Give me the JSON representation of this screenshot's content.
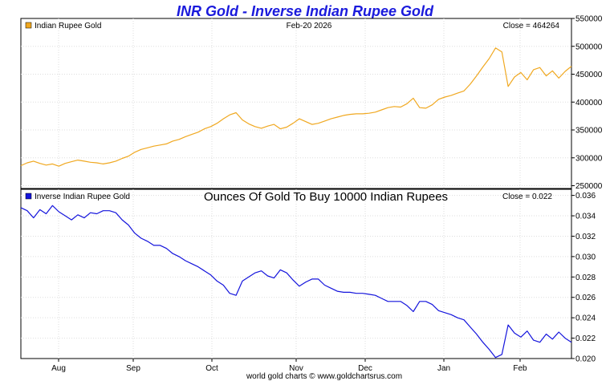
{
  "chart_data": {
    "title": "INR Gold - Inverse Indian Rupee Gold",
    "title_color": "#1a1adc",
    "footer": "world gold charts © www.goldchartsrus.com",
    "x_labels": [
      "Aug",
      "Sep",
      "Oct",
      "Nov",
      "Dec",
      "Jan",
      "Feb"
    ],
    "panels": [
      {
        "type": "line",
        "legend_label": "Indian Rupee Gold",
        "date_label": "Feb-20  2026",
        "close_label": "Close = 464264",
        "center_title": "",
        "color": "#f0a820",
        "ylim": [
          245000,
          550000
        ],
        "y_ticks": [
          250000,
          300000,
          350000,
          400000,
          450000,
          500000,
          550000
        ],
        "y_tick_labels": [
          "250000",
          "300000",
          "350000",
          "400000",
          "450000",
          "500000",
          "550000"
        ],
        "values": [
          286000,
          291000,
          294000,
          290000,
          287000,
          289000,
          285000,
          290000,
          293000,
          296000,
          294000,
          292000,
          291000,
          289000,
          291000,
          294000,
          299000,
          303000,
          310000,
          315000,
          318000,
          321000,
          323000,
          325000,
          330000,
          333000,
          338000,
          342000,
          346000,
          352000,
          356000,
          362000,
          370000,
          377000,
          381000,
          368000,
          361000,
          356000,
          353000,
          357000,
          360000,
          352000,
          355000,
          362000,
          370000,
          365000,
          360000,
          362000,
          366000,
          370000,
          373000,
          376000,
          378000,
          379000,
          379000,
          380000,
          382000,
          386000,
          390000,
          392000,
          391000,
          397000,
          407000,
          390000,
          389000,
          395000,
          405000,
          409000,
          412000,
          416000,
          420000,
          432000,
          447000,
          463000,
          478000,
          497000,
          490000,
          428000,
          445000,
          453000,
          440000,
          458000,
          462000,
          447000,
          456000,
          443000,
          455000,
          464264
        ]
      },
      {
        "type": "line",
        "legend_label": "Inverse Indian Rupee Gold",
        "date_label": "",
        "close_label": "Close = 0.022",
        "center_title": "Ounces Of Gold To Buy 10000 Indian Rupees",
        "color": "#1414dc",
        "ylim": [
          0.02,
          0.0366
        ],
        "y_ticks": [
          0.02,
          0.022,
          0.024,
          0.026,
          0.028,
          0.03,
          0.032,
          0.034,
          0.036
        ],
        "y_tick_labels": [
          "0.020",
          "0.022",
          "0.024",
          "0.026",
          "0.028",
          "0.030",
          "0.032",
          "0.034",
          "0.036"
        ],
        "values": [
          0.0348,
          0.0345,
          0.0338,
          0.0346,
          0.0342,
          0.035,
          0.0344,
          0.034,
          0.0336,
          0.0341,
          0.0338,
          0.0343,
          0.0342,
          0.0345,
          0.0345,
          0.0343,
          0.0336,
          0.0331,
          0.0323,
          0.0318,
          0.0315,
          0.0311,
          0.0311,
          0.0308,
          0.0303,
          0.03,
          0.0296,
          0.0293,
          0.029,
          0.0286,
          0.0282,
          0.0276,
          0.0272,
          0.0264,
          0.0262,
          0.0276,
          0.028,
          0.0284,
          0.0286,
          0.0281,
          0.0279,
          0.0287,
          0.0284,
          0.0277,
          0.0271,
          0.0275,
          0.0278,
          0.0278,
          0.0272,
          0.0269,
          0.0266,
          0.0265,
          0.0265,
          0.0264,
          0.0264,
          0.0263,
          0.0262,
          0.0259,
          0.0256,
          0.0256,
          0.0256,
          0.0252,
          0.0246,
          0.0256,
          0.0256,
          0.0253,
          0.0247,
          0.0245,
          0.0243,
          0.024,
          0.0238,
          0.0231,
          0.0224,
          0.0216,
          0.0209,
          0.0201,
          0.0204,
          0.0233,
          0.0225,
          0.0221,
          0.0227,
          0.0218,
          0.0216,
          0.0224,
          0.0219,
          0.0226,
          0.022,
          0.0216
        ]
      }
    ]
  }
}
